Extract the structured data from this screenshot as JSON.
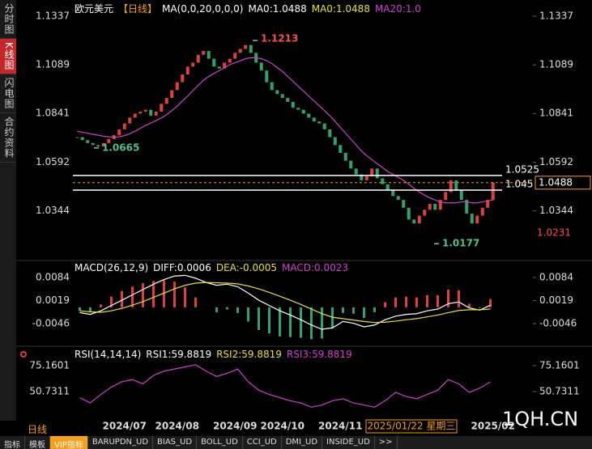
{
  "sidebar": [
    "分时图",
    "K线图",
    "闪电图",
    "合约资料"
  ],
  "bottom": {
    "period": "日线",
    "tabs": [
      "指标",
      "模板",
      "VIP指标",
      "BARUPDN_UD",
      "BIAS_UD",
      "BOLL_UD",
      "CCI_UD",
      "DMI_UD",
      "INSIDE_UD",
      ">>"
    ]
  },
  "watermark": "1QH.CN",
  "chart_data": [
    {
      "type": "candlestick",
      "title": "欧元美元",
      "period": "【日线】",
      "readouts": [
        {
          "text": "MA(0,0,20,0,0,0)",
          "color": "#ffffff"
        },
        {
          "text": "MA0:1.0488",
          "color": "#ffffff"
        },
        {
          "text": "MA0:1.0488",
          "color": "#e8e030"
        },
        {
          "text": "MA20:1.0",
          "color": "#d040d0"
        }
      ],
      "categories": [
        null,
        null,
        null,
        null,
        null,
        null,
        null,
        null,
        null,
        "2024/07",
        null,
        null,
        null,
        null,
        null,
        null,
        null,
        null,
        null,
        "2024/08",
        null,
        null,
        null,
        null,
        null,
        null,
        null,
        null,
        null,
        null,
        "2024/09",
        null,
        null,
        null,
        null,
        null,
        null,
        null,
        null,
        "2024/10",
        null,
        null,
        null,
        null,
        null,
        null,
        null,
        null,
        null,
        null,
        "2024/11",
        null,
        null,
        null,
        null,
        null,
        null,
        null,
        null,
        null,
        null,
        null,
        null,
        null,
        null,
        null,
        null,
        null,
        null,
        null,
        null,
        null,
        null,
        null,
        null,
        null,
        null,
        null,
        null,
        "2025/02"
      ],
      "series": [
        {
          "name": "close",
          "up_color": "#e0403a",
          "down_color": "#2fa36b",
          "values": [
            1.072,
            1.0705,
            1.069,
            1.068,
            1.0672,
            1.069,
            1.071,
            1.073,
            1.076,
            1.079,
            1.082,
            1.084,
            1.085,
            1.086,
            1.083,
            1.085,
            1.089,
            1.092,
            1.096,
            1.1,
            1.104,
            1.108,
            1.11,
            1.114,
            1.116,
            1.112,
            1.108,
            1.107,
            1.11,
            1.112,
            1.115,
            1.117,
            1.119,
            1.115,
            1.11,
            1.106,
            1.1,
            1.096,
            1.094,
            1.092,
            1.09,
            1.087,
            1.086,
            1.084,
            1.082,
            1.08,
            1.079,
            1.076,
            1.072,
            1.068,
            1.064,
            1.06,
            1.056,
            1.053,
            1.05,
            1.052,
            1.056,
            1.051,
            1.048,
            1.045,
            1.042,
            1.04,
            1.036,
            1.03,
            1.028,
            1.032,
            1.035,
            1.038,
            1.035,
            1.04,
            1.044,
            1.05,
            1.045,
            1.04,
            1.033,
            1.028,
            1.032,
            1.036,
            1.04,
            1.0488
          ]
        },
        {
          "name": "MA20",
          "color": "#d040d0",
          "values": [
            1.075,
            1.0745,
            1.074,
            1.0735,
            1.073,
            1.0725,
            1.0722,
            1.072,
            1.0722,
            1.0728,
            1.0738,
            1.075,
            1.0765,
            1.078,
            1.0792,
            1.0805,
            1.0818,
            1.0835,
            1.0855,
            1.0878,
            1.0905,
            1.093,
            1.0958,
            1.0985,
            1.101,
            1.103,
            1.1045,
            1.106,
            1.1075,
            1.109,
            1.11,
            1.111,
            1.112,
            1.1125,
            1.1125,
            1.112,
            1.111,
            1.1095,
            1.1075,
            1.1055,
            1.103,
            1.1005,
            1.098,
            1.0955,
            1.093,
            1.0905,
            1.088,
            1.0855,
            1.083,
            1.08,
            1.077,
            1.074,
            1.071,
            1.068,
            1.065,
            1.0625,
            1.0605,
            1.0585,
            1.0565,
            1.0545,
            1.053,
            1.0515,
            1.05,
            1.048,
            1.046,
            1.044,
            1.0425,
            1.041,
            1.04,
            1.039,
            1.0385,
            1.0385,
            1.0385,
            1.039,
            1.039,
            1.0385,
            1.0385,
            1.039,
            1.0395,
            1.04
          ]
        }
      ],
      "ylim": [
        1.012,
        1.1337
      ],
      "yticks": [
        1.0344,
        1.0592,
        1.0841,
        1.1089,
        1.1337
      ],
      "hlines": [
        {
          "value": 1.0525,
          "color": "#ffffff"
        },
        {
          "value": 1.045,
          "color": "#ffffff"
        }
      ],
      "last_price": {
        "value": 1.0488,
        "color": "#f6a01a"
      },
      "annotations": [
        {
          "value": 1.1213,
          "color": "#ff4a4a"
        },
        {
          "value": 1.0665,
          "color": "#4fc08d"
        },
        {
          "value": 1.0177,
          "color": "#4fc08d"
        }
      ],
      "cursor": {
        "category": "2025/01/22 星期三",
        "value": 1.0231
      }
    },
    {
      "type": "macd",
      "title": "MACD(26,12,9)",
      "readouts": [
        {
          "text": "DIFF:0.0006",
          "color": "#ffffff"
        },
        {
          "text": "DEA:-0.0005",
          "color": "#e8e030"
        },
        {
          "text": "MACD:0.0023",
          "color": "#d040d0"
        }
      ],
      "series": [
        {
          "name": "DIFF",
          "color": "#ffffff",
          "values": [
            -0.0015,
            -0.002,
            -0.001,
            0.0005,
            0.002,
            0.0035,
            0.005,
            0.0065,
            0.0078,
            0.0088,
            0.009,
            0.0082,
            0.007,
            0.0062,
            0.0065,
            0.0058,
            0.004,
            0.002,
            0.0005,
            -0.001,
            -0.0022,
            -0.0035,
            -0.005,
            -0.0062,
            -0.0058,
            -0.004,
            -0.0045,
            -0.0055,
            -0.005,
            -0.0035,
            -0.0025,
            -0.002,
            -0.0018,
            -0.001,
            -0.0005,
            0.001,
            0.0015,
            -0.0002,
            -0.0008,
            0.0006
          ]
        },
        {
          "name": "DEA",
          "color": "#e8e030",
          "values": [
            -0.001,
            -0.0013,
            -0.0014,
            -0.001,
            -0.0003,
            0.0006,
            0.0016,
            0.0028,
            0.004,
            0.0052,
            0.0062,
            0.0068,
            0.007,
            0.0069,
            0.0068,
            0.0066,
            0.006,
            0.0052,
            0.0042,
            0.0031,
            0.002,
            0.0008,
            -0.0005,
            -0.0018,
            -0.0028,
            -0.0032,
            -0.0036,
            -0.004,
            -0.0043,
            -0.0042,
            -0.0039,
            -0.0035,
            -0.0032,
            -0.0027,
            -0.0022,
            -0.0015,
            -0.0009,
            -0.0007,
            -0.0007,
            -0.0005
          ]
        },
        {
          "name": "MACD",
          "up_color": "#e0403a",
          "down_color": "#2fa36b",
          "values": [
            -0.001,
            -0.0014,
            0.0008,
            0.003,
            0.0046,
            0.0058,
            0.0068,
            0.0074,
            0.0076,
            0.0072,
            0.0056,
            0.0028,
            0.0,
            -0.0014,
            -0.0006,
            -0.0016,
            -0.004,
            -0.0064,
            -0.0074,
            -0.0082,
            -0.0084,
            -0.0086,
            -0.009,
            -0.0088,
            -0.006,
            -0.0016,
            -0.0018,
            -0.003,
            -0.0014,
            0.0014,
            0.0028,
            0.003,
            0.0028,
            0.0034,
            0.0034,
            0.005,
            0.0048,
            0.001,
            -0.0002,
            0.0023
          ]
        }
      ],
      "ylim": [
        -0.0103,
        0.0125
      ],
      "yticks": [
        -0.0046,
        0.0019,
        0.0084
      ]
    },
    {
      "type": "line",
      "title": "RSI(14,14,14)",
      "readouts": [
        {
          "text": "RSI1:59.8819",
          "color": "#ffffff"
        },
        {
          "text": "RSI2:59.8819",
          "color": "#e8e030"
        },
        {
          "text": "RSI3:59.8819",
          "color": "#d040d0"
        }
      ],
      "series": [
        {
          "name": "RSI",
          "color": "#d040d0",
          "values": [
            45,
            40,
            48,
            55,
            60,
            62,
            58,
            66,
            70,
            72,
            74,
            76,
            70,
            65,
            68,
            72,
            60,
            52,
            48,
            45,
            42,
            40,
            36,
            38,
            42,
            44,
            40,
            38,
            36,
            42,
            50,
            46,
            44,
            48,
            52,
            62,
            58,
            50,
            54,
            59.8819
          ]
        }
      ],
      "ylim": [
        30.88,
        84.32
      ],
      "yticks": [
        50.7311,
        75.1601
      ]
    }
  ]
}
